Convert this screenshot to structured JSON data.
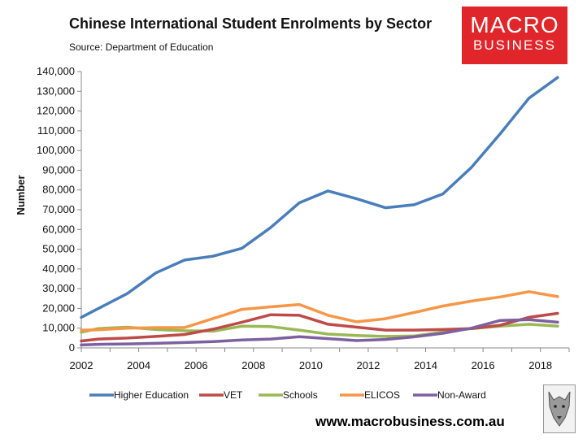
{
  "title": "Chinese International Student Enrolments by Sector",
  "source": "Source: Department of Education",
  "logo": {
    "line1": "MACRO",
    "line2": "BUSINESS",
    "color": "#e1262b"
  },
  "website": "www.macrobusiness.com.au",
  "chart_data": {
    "type": "line",
    "title": "Chinese International Student Enrolments by Sector",
    "xlabel": "",
    "ylabel": "Number",
    "xlim": [
      2002,
      2019
    ],
    "ylim": [
      0,
      140000
    ],
    "x_ticks": [
      2002,
      2004,
      2006,
      2008,
      2010,
      2012,
      2014,
      2016,
      2018
    ],
    "x_tick_labels": [
      "2002",
      "2004",
      "2006",
      "2008",
      "2010",
      "2012",
      "2014",
      "2016",
      "2018"
    ],
    "y_ticks": [
      0,
      10000,
      20000,
      30000,
      40000,
      50000,
      60000,
      70000,
      80000,
      90000,
      100000,
      110000,
      120000,
      130000,
      140000
    ],
    "y_tick_labels": [
      "0",
      "10,000",
      "20,000",
      "30,000",
      "40,000",
      "50,000",
      "60,000",
      "70,000",
      "80,000",
      "90,000",
      "100,000",
      "110,000",
      "120,000",
      "130,000",
      "140,000"
    ],
    "x": [
      2002.0,
      2002.6,
      2003.6,
      2004.6,
      2005.6,
      2006.6,
      2007.6,
      2008.6,
      2009.6,
      2010.6,
      2011.6,
      2012.6,
      2013.6,
      2014.6,
      2015.6,
      2016.6,
      2017.6,
      2018.6
    ],
    "series": [
      {
        "name": "Higher Education",
        "color": "#4a7ebb",
        "values": [
          15500,
          20000,
          27500,
          38000,
          44500,
          46500,
          50500,
          61000,
          73500,
          79500,
          75500,
          71000,
          72500,
          78000,
          91500,
          108500,
          126500,
          137000
        ]
      },
      {
        "name": "VET",
        "color": "#be4b48",
        "values": [
          3500,
          4500,
          5000,
          5800,
          6800,
          9500,
          13000,
          16800,
          16500,
          12000,
          10500,
          9000,
          9000,
          9300,
          9800,
          11500,
          15500,
          17500
        ]
      },
      {
        "name": "Schools",
        "color": "#98b954",
        "values": [
          8000,
          9800,
          10500,
          9300,
          8700,
          8500,
          11000,
          10800,
          9000,
          7000,
          6300,
          5800,
          6000,
          8000,
          9800,
          11000,
          12000,
          11000
        ]
      },
      {
        "name": "ELICOS",
        "color": "#f79646",
        "values": [
          9000,
          9200,
          10000,
          10300,
          10300,
          14900,
          19500,
          20800,
          22000,
          16500,
          13200,
          14800,
          17900,
          21200,
          23700,
          25800,
          28500,
          26000
        ]
      },
      {
        "name": "Non-Award",
        "color": "#7d60a0",
        "values": [
          1500,
          1800,
          2000,
          2300,
          2700,
          3200,
          4000,
          4500,
          5700,
          4700,
          3700,
          4300,
          5600,
          7400,
          10000,
          13900,
          14300,
          13000
        ]
      }
    ],
    "legend_position": "bottom",
    "grid": false
  }
}
